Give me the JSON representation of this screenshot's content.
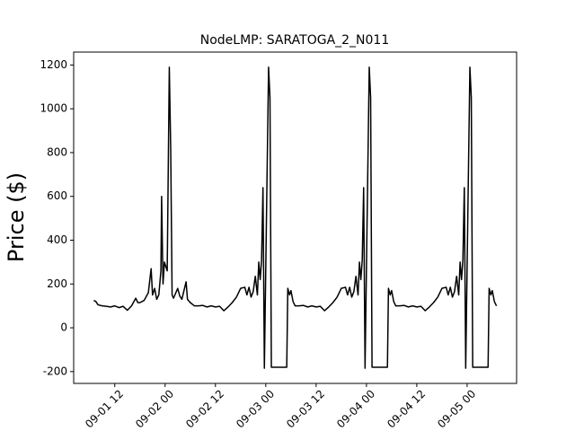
{
  "chart_data": {
    "type": "line",
    "title": "NodeLMP: SARATOGA_2_N011",
    "y_label": "Price ($)",
    "color": "#000000",
    "x": [
      "09-01 07:00",
      "09-01 07:30",
      "09-01 08:00",
      "09-01 09:00",
      "09-01 10:00",
      "09-01 11:00",
      "09-01 12:00",
      "09-01 13:00",
      "09-01 14:00",
      "09-01 15:00",
      "09-01 15:30",
      "09-01 16:00",
      "09-01 17:00",
      "09-01 17:30",
      "09-01 18:00",
      "09-01 19:00",
      "09-01 20:00",
      "09-01 20:40",
      "09-01 21:00",
      "09-01 21:30",
      "09-01 22:00",
      "09-01 22:30",
      "09-01 23:00",
      "09-01 23:10",
      "09-01 23:30",
      "09-01 23:50",
      "09-02 00:30",
      "09-02 01:00",
      "09-02 01:20",
      "09-02 01:40",
      "09-02 02:00",
      "09-02 03:00",
      "09-02 03:30",
      "09-02 04:00",
      "09-02 05:00",
      "09-02 05:20",
      "09-02 06:00",
      "09-02 07:00",
      "09-02 08:00",
      "09-02 09:00",
      "09-02 10:00",
      "09-02 11:00",
      "09-02 12:00",
      "09-02 13:00",
      "09-02 14:00",
      "09-02 15:00",
      "09-02 16:00",
      "09-02 17:00",
      "09-02 18:00",
      "09-02 19:00",
      "09-02 19:30",
      "09-02 20:00",
      "09-02 20:30",
      "09-02 21:00",
      "09-02 21:30",
      "09-02 22:00",
      "09-02 22:20",
      "09-02 22:40",
      "09-02 23:00",
      "09-02 23:20",
      "09-02 23:40",
      "09-03 00:40",
      "09-03 01:00",
      "09-03 01:20",
      "09-03 05:00",
      "09-03 05:15",
      "09-03 05:40",
      "09-03 06:00",
      "09-03 06:30",
      "09-03 07:00",
      "09-03 08:00",
      "09-03 09:00",
      "09-03 10:00",
      "09-03 11:00",
      "09-03 12:00",
      "09-03 13:00",
      "09-03 14:00",
      "09-03 15:00",
      "09-03 16:00",
      "09-03 17:00",
      "09-03 18:00",
      "09-03 19:00",
      "09-03 19:30",
      "09-03 20:00",
      "09-03 20:30",
      "09-03 21:00",
      "09-03 21:30",
      "09-03 22:00",
      "09-03 22:20",
      "09-03 22:40",
      "09-03 23:00",
      "09-03 23:20",
      "09-03 23:40",
      "09-04 00:40",
      "09-04 01:00",
      "09-04 01:20",
      "09-04 05:00",
      "09-04 05:15",
      "09-04 05:40",
      "09-04 06:00",
      "09-04 06:30",
      "09-04 07:00",
      "09-04 08:00",
      "09-04 09:00",
      "09-04 10:00",
      "09-04 11:00",
      "09-04 12:00",
      "09-04 13:00",
      "09-04 14:00",
      "09-04 15:00",
      "09-04 16:00",
      "09-04 17:00",
      "09-04 18:00",
      "09-04 19:00",
      "09-04 19:30",
      "09-04 20:00",
      "09-04 20:30",
      "09-04 21:00",
      "09-04 21:30",
      "09-04 22:00",
      "09-04 22:20",
      "09-04 22:40",
      "09-04 23:00",
      "09-04 23:20",
      "09-04 23:40",
      "09-05 00:40",
      "09-05 01:00",
      "09-05 01:20",
      "09-05 05:00",
      "09-05 05:15",
      "09-05 05:40",
      "09-05 06:00",
      "09-05 06:30",
      "09-05 07:00"
    ],
    "values": [
      125,
      120,
      105,
      100,
      98,
      95,
      100,
      92,
      98,
      80,
      90,
      100,
      135,
      115,
      115,
      125,
      160,
      270,
      150,
      180,
      130,
      150,
      260,
      600,
      200,
      300,
      260,
      1190,
      820,
      150,
      135,
      180,
      145,
      130,
      210,
      130,
      115,
      100,
      100,
      102,
      95,
      100,
      95,
      98,
      78,
      95,
      115,
      140,
      180,
      185,
      150,
      185,
      140,
      165,
      235,
      150,
      300,
      220,
      310,
      640,
      -185,
      1190,
      1050,
      -180,
      -180,
      180,
      150,
      170,
      120,
      100,
      100,
      102,
      95,
      100,
      95,
      98,
      78,
      95,
      115,
      140,
      180,
      185,
      150,
      185,
      140,
      165,
      235,
      150,
      300,
      220,
      310,
      640,
      -185,
      1190,
      1050,
      -180,
      -180,
      180,
      150,
      170,
      120,
      100,
      100,
      102,
      95,
      100,
      95,
      98,
      78,
      95,
      115,
      140,
      180,
      185,
      150,
      185,
      140,
      165,
      235,
      150,
      300,
      220,
      310,
      640,
      -185,
      1190,
      1050,
      -180,
      -180,
      180,
      150,
      170,
      120,
      100
    ],
    "xlim": [
      "09-01 02:12",
      "09-05 11:48"
    ],
    "xticks": [
      {
        "value": "09-01 12:00",
        "label": "09-01 12"
      },
      {
        "value": "09-02 00:00",
        "label": "09-02 00"
      },
      {
        "value": "09-02 12:00",
        "label": "09-02 12"
      },
      {
        "value": "09-03 00:00",
        "label": "09-03 00"
      },
      {
        "value": "09-03 12:00",
        "label": "09-03 12"
      },
      {
        "value": "09-04 00:00",
        "label": "09-04 00"
      },
      {
        "value": "09-04 12:00",
        "label": "09-04 12"
      },
      {
        "value": "09-05 00:00",
        "label": "09-05 00"
      }
    ],
    "ylim": [
      -254,
      1259
    ],
    "yticks": [
      -200,
      0,
      200,
      400,
      600,
      800,
      1000,
      1200
    ]
  }
}
